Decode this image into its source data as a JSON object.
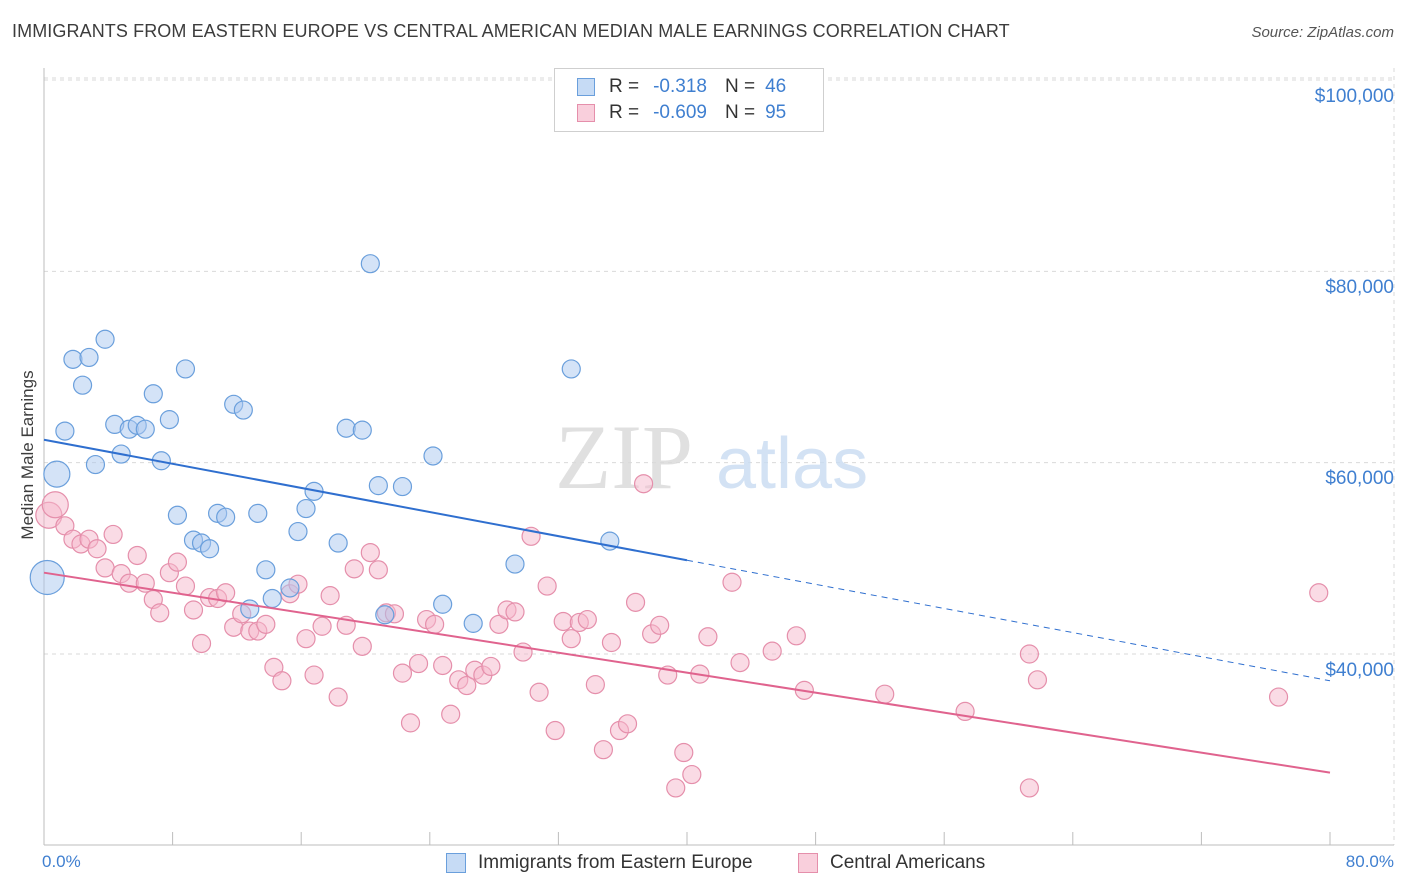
{
  "header": {
    "title": "IMMIGRANTS FROM EASTERN EUROPE VS CENTRAL AMERICAN MEDIAN MALE EARNINGS CORRELATION CHART",
    "source": "Source: ZipAtlas.com"
  },
  "watermark": {
    "part1": "ZIP",
    "part2": "atlas"
  },
  "legend": {
    "rows": [
      {
        "r_label": "R =",
        "r_value": "-0.318",
        "n_label": "N =",
        "n_value": "46",
        "color": "#a9c8f0"
      },
      {
        "r_label": "R =",
        "r_value": "-0.609",
        "n_label": "N =",
        "n_value": "95",
        "color": "#f6b8cb"
      }
    ]
  },
  "bottom_legend": {
    "series1": "Immigrants from Eastern Europe",
    "series2": "Central Americans"
  },
  "colors": {
    "blue_fill": "#a9c8f0",
    "blue_stroke": "#6a9fdc",
    "blue_line": "#2f6fcf",
    "pink_fill": "#f6b8cb",
    "pink_stroke": "#e58fab",
    "pink_line": "#e0638e",
    "grid": "#d9d9d9",
    "tick_text": "#3f7fd0"
  },
  "chart_data": {
    "type": "scatter",
    "title": "IMMIGRANTS FROM EASTERN EUROPE VS CENTRAL AMERICAN MEDIAN MALE EARNINGS CORRELATION CHART",
    "xlabel": "",
    "ylabel": "Median Male Earnings",
    "xlim": [
      0,
      80
    ],
    "ylim": [
      18000,
      102000
    ],
    "x_tick_labels": [
      "0.0%",
      "80.0%"
    ],
    "y_ticks": [
      40000,
      60000,
      80000,
      100000
    ],
    "y_tick_labels": [
      "$40,000",
      "$60,000",
      "$80,000",
      "$100,000"
    ],
    "grid": true,
    "series": [
      {
        "name": "Immigrants from Eastern Europe",
        "r": -0.318,
        "n": 46,
        "trend": {
          "x_start": 0,
          "y_start": 62400,
          "x_solid_end": 40,
          "y_solid_end": 49800,
          "x_end": 80,
          "y_end": 37200
        },
        "points": [
          {
            "x": 0.2,
            "y": 48000,
            "big": 2
          },
          {
            "x": 0.8,
            "y": 58800,
            "big": 1
          },
          {
            "x": 1.3,
            "y": 63300
          },
          {
            "x": 1.8,
            "y": 70800
          },
          {
            "x": 2.4,
            "y": 68100
          },
          {
            "x": 2.8,
            "y": 71000
          },
          {
            "x": 3.2,
            "y": 59800
          },
          {
            "x": 3.8,
            "y": 72900
          },
          {
            "x": 4.4,
            "y": 64000
          },
          {
            "x": 4.8,
            "y": 60900
          },
          {
            "x": 5.3,
            "y": 63500
          },
          {
            "x": 5.8,
            "y": 63900
          },
          {
            "x": 6.3,
            "y": 63500
          },
          {
            "x": 6.8,
            "y": 67200
          },
          {
            "x": 7.3,
            "y": 60200
          },
          {
            "x": 7.8,
            "y": 64500
          },
          {
            "x": 8.3,
            "y": 54500
          },
          {
            "x": 8.8,
            "y": 69800
          },
          {
            "x": 9.3,
            "y": 51900
          },
          {
            "x": 9.8,
            "y": 51600
          },
          {
            "x": 10.3,
            "y": 51000
          },
          {
            "x": 10.8,
            "y": 54700
          },
          {
            "x": 11.3,
            "y": 54300
          },
          {
            "x": 11.8,
            "y": 66100
          },
          {
            "x": 12.4,
            "y": 65500
          },
          {
            "x": 12.8,
            "y": 44700
          },
          {
            "x": 13.3,
            "y": 54700
          },
          {
            "x": 13.8,
            "y": 48800
          },
          {
            "x": 14.2,
            "y": 45800
          },
          {
            "x": 15.3,
            "y": 46900
          },
          {
            "x": 15.8,
            "y": 52800
          },
          {
            "x": 16.3,
            "y": 55200
          },
          {
            "x": 16.8,
            "y": 57000
          },
          {
            "x": 18.3,
            "y": 51600
          },
          {
            "x": 18.8,
            "y": 63600
          },
          {
            "x": 19.8,
            "y": 63400
          },
          {
            "x": 20.3,
            "y": 80800
          },
          {
            "x": 20.8,
            "y": 57600
          },
          {
            "x": 21.2,
            "y": 44100
          },
          {
            "x": 22.3,
            "y": 57500
          },
          {
            "x": 24.2,
            "y": 60700
          },
          {
            "x": 24.8,
            "y": 45200
          },
          {
            "x": 26.7,
            "y": 43200
          },
          {
            "x": 29.3,
            "y": 49400
          },
          {
            "x": 32.8,
            "y": 69800
          },
          {
            "x": 35.2,
            "y": 51800
          }
        ]
      },
      {
        "name": "Central Americans",
        "r": -0.609,
        "n": 95,
        "trend": {
          "x_start": 0,
          "y_start": 48500,
          "x_end": 80,
          "y_end": 27600
        },
        "points": [
          {
            "x": 0.3,
            "y": 54500,
            "big": 1
          },
          {
            "x": 0.7,
            "y": 55600,
            "big": 1
          },
          {
            "x": 1.3,
            "y": 53400
          },
          {
            "x": 1.8,
            "y": 52000
          },
          {
            "x": 2.3,
            "y": 51500
          },
          {
            "x": 2.8,
            "y": 52000
          },
          {
            "x": 3.3,
            "y": 51000
          },
          {
            "x": 3.8,
            "y": 49000
          },
          {
            "x": 4.3,
            "y": 52500
          },
          {
            "x": 4.8,
            "y": 48400
          },
          {
            "x": 5.3,
            "y": 47400
          },
          {
            "x": 5.8,
            "y": 50300
          },
          {
            "x": 6.3,
            "y": 47400
          },
          {
            "x": 6.8,
            "y": 45700
          },
          {
            "x": 7.2,
            "y": 44300
          },
          {
            "x": 7.8,
            "y": 48500
          },
          {
            "x": 8.3,
            "y": 49600
          },
          {
            "x": 8.8,
            "y": 47100
          },
          {
            "x": 9.3,
            "y": 44600
          },
          {
            "x": 9.8,
            "y": 41100
          },
          {
            "x": 10.3,
            "y": 45900
          },
          {
            "x": 10.8,
            "y": 45800
          },
          {
            "x": 11.3,
            "y": 46400
          },
          {
            "x": 11.8,
            "y": 42800
          },
          {
            "x": 12.3,
            "y": 44200
          },
          {
            "x": 12.8,
            "y": 42400
          },
          {
            "x": 13.3,
            "y": 42400
          },
          {
            "x": 13.8,
            "y": 43100
          },
          {
            "x": 14.3,
            "y": 38600
          },
          {
            "x": 14.8,
            "y": 37200
          },
          {
            "x": 15.3,
            "y": 46300
          },
          {
            "x": 15.8,
            "y": 47300
          },
          {
            "x": 16.3,
            "y": 41600
          },
          {
            "x": 16.8,
            "y": 37800
          },
          {
            "x": 17.3,
            "y": 42900
          },
          {
            "x": 17.8,
            "y": 46100
          },
          {
            "x": 18.3,
            "y": 35500
          },
          {
            "x": 18.8,
            "y": 43000
          },
          {
            "x": 19.3,
            "y": 48900
          },
          {
            "x": 19.8,
            "y": 40800
          },
          {
            "x": 20.3,
            "y": 50600
          },
          {
            "x": 20.8,
            "y": 48800
          },
          {
            "x": 21.3,
            "y": 44300
          },
          {
            "x": 21.8,
            "y": 44200
          },
          {
            "x": 22.3,
            "y": 38000
          },
          {
            "x": 22.8,
            "y": 32800
          },
          {
            "x": 23.3,
            "y": 39000
          },
          {
            "x": 23.8,
            "y": 43600
          },
          {
            "x": 24.3,
            "y": 43100
          },
          {
            "x": 24.8,
            "y": 38800
          },
          {
            "x": 25.3,
            "y": 33700
          },
          {
            "x": 25.8,
            "y": 37300
          },
          {
            "x": 26.3,
            "y": 36700
          },
          {
            "x": 26.8,
            "y": 38300
          },
          {
            "x": 27.3,
            "y": 37800
          },
          {
            "x": 27.8,
            "y": 38700
          },
          {
            "x": 28.3,
            "y": 43100
          },
          {
            "x": 28.8,
            "y": 44600
          },
          {
            "x": 29.3,
            "y": 44400
          },
          {
            "x": 29.8,
            "y": 40200
          },
          {
            "x": 30.3,
            "y": 52300
          },
          {
            "x": 30.8,
            "y": 36000
          },
          {
            "x": 31.3,
            "y": 47100
          },
          {
            "x": 31.8,
            "y": 32000
          },
          {
            "x": 32.3,
            "y": 43400
          },
          {
            "x": 32.8,
            "y": 41600
          },
          {
            "x": 33.3,
            "y": 43300
          },
          {
            "x": 33.8,
            "y": 43600
          },
          {
            "x": 34.3,
            "y": 36800
          },
          {
            "x": 34.8,
            "y": 30000
          },
          {
            "x": 35.3,
            "y": 41200
          },
          {
            "x": 35.8,
            "y": 32000
          },
          {
            "x": 36.3,
            "y": 32700
          },
          {
            "x": 36.8,
            "y": 45400
          },
          {
            "x": 37.3,
            "y": 57800
          },
          {
            "x": 37.8,
            "y": 42100
          },
          {
            "x": 38.3,
            "y": 43000
          },
          {
            "x": 38.8,
            "y": 37800
          },
          {
            "x": 39.3,
            "y": 26000
          },
          {
            "x": 39.8,
            "y": 29700
          },
          {
            "x": 40.3,
            "y": 27400
          },
          {
            "x": 40.8,
            "y": 37900
          },
          {
            "x": 41.3,
            "y": 41800
          },
          {
            "x": 42.8,
            "y": 47500
          },
          {
            "x": 43.3,
            "y": 39100
          },
          {
            "x": 45.3,
            "y": 40300
          },
          {
            "x": 46.8,
            "y": 41900
          },
          {
            "x": 47.3,
            "y": 36200
          },
          {
            "x": 52.3,
            "y": 35800
          },
          {
            "x": 57.3,
            "y": 34000
          },
          {
            "x": 61.3,
            "y": 40000
          },
          {
            "x": 61.8,
            "y": 37300
          },
          {
            "x": 61.3,
            "y": 26000
          },
          {
            "x": 76.8,
            "y": 35500
          },
          {
            "x": 79.3,
            "y": 46400
          }
        ]
      }
    ]
  }
}
